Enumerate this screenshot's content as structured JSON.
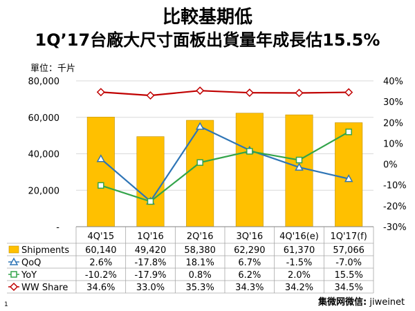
{
  "title_line1": "比較基期低",
  "title_line2": "1Q’17台廠大尺寸面板出貨量年成長估15.5%",
  "unit_label": "單位：千片",
  "footer_prefix": "集微网微信:",
  "footer_handle": "jiweinet",
  "page_number": "1",
  "colors": {
    "shipments": "#FFC000",
    "qoq": "#2E75B6",
    "yoy": "#33A44A",
    "ww_share": "#C00000"
  },
  "chart_data": {
    "type": "bar",
    "categories": [
      "4Q'15",
      "1Q'16",
      "2Q'16",
      "3Q'16",
      "4Q'16(e)",
      "1Q'17(f)"
    ],
    "left_axis": {
      "ticks": [
        "80,000",
        "60,000",
        "40,000",
        "20,000",
        "-"
      ],
      "ylim": [
        0,
        80000
      ]
    },
    "right_axis": {
      "ticks": [
        "40%",
        "30%",
        "20%",
        "10%",
        "0%",
        "-10%",
        "-20%",
        "-30%"
      ],
      "ylim": [
        -30,
        40
      ]
    },
    "series": [
      {
        "key": "shipments",
        "name": "Shipments",
        "type": "bar",
        "axis": "left",
        "values": [
          60140,
          49420,
          58380,
          62290,
          61370,
          57066
        ],
        "labels": [
          "60,140",
          "49,420",
          "58,380",
          "62,290",
          "61,370",
          "57,066"
        ]
      },
      {
        "key": "qoq",
        "name": "QoQ",
        "type": "line",
        "axis": "right",
        "marker": "triangle",
        "values": [
          2.6,
          -17.8,
          18.1,
          6.7,
          -1.5,
          -7.0
        ],
        "labels": [
          "2.6%",
          "-17.8%",
          "18.1%",
          "6.7%",
          "-1.5%",
          "-7.0%"
        ]
      },
      {
        "key": "yoy",
        "name": "YoY",
        "type": "line",
        "axis": "right",
        "marker": "square",
        "values": [
          -10.2,
          -17.9,
          0.8,
          6.2,
          2.0,
          15.5
        ],
        "labels": [
          "-10.2%",
          "-17.9%",
          "0.8%",
          "6.2%",
          "2.0%",
          "15.5%"
        ]
      },
      {
        "key": "ww_share",
        "name": "WW Share",
        "type": "line",
        "axis": "right",
        "marker": "diamond",
        "values": [
          34.6,
          33.0,
          35.3,
          34.3,
          34.2,
          34.5
        ],
        "labels": [
          "34.6%",
          "33.0%",
          "35.3%",
          "34.3%",
          "34.2%",
          "34.5%"
        ]
      }
    ]
  }
}
